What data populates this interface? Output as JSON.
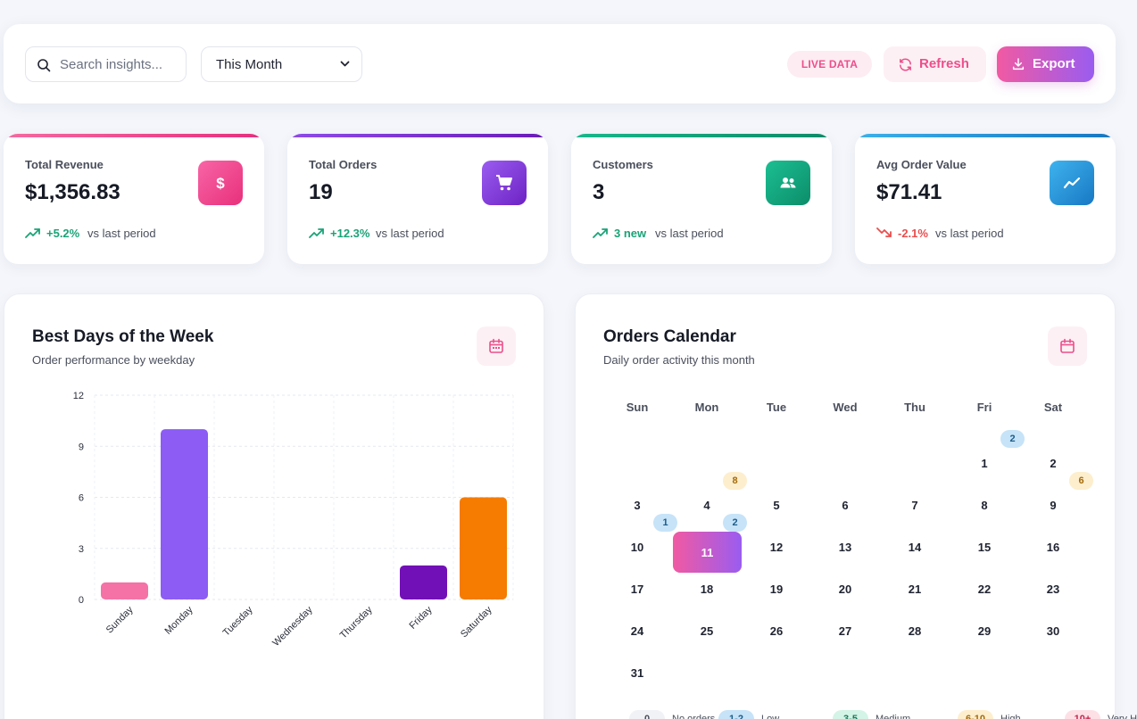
{
  "toolbar": {
    "search_placeholder": "Search insights...",
    "period": "This Month",
    "live_label": "LIVE DATA",
    "refresh_label": "Refresh",
    "export_label": "Export"
  },
  "stats": [
    {
      "label": "Total Revenue",
      "value": "$1,356.83",
      "change": "+5.2%",
      "vs": "vs last period",
      "trend": "up",
      "icon": "dollar-icon",
      "color": "#f0418c"
    },
    {
      "label": "Total Orders",
      "value": "19",
      "change": "+12.3%",
      "vs": "vs last period",
      "trend": "up",
      "icon": "shopping-cart-icon",
      "color": "#8b3fe0"
    },
    {
      "label": "Customers",
      "value": "3",
      "change": "3 new",
      "vs": "vs last period",
      "trend": "up",
      "icon": "users-icon",
      "color": "#13a883"
    },
    {
      "label": "Avg Order Value",
      "value": "$71.41",
      "change": "-2.1%",
      "vs": "vs last period",
      "trend": "down",
      "icon": "trend-line-icon",
      "color": "#2b9ee0"
    }
  ],
  "weekday_panel": {
    "title": "Best Days of the Week",
    "subtitle": "Order performance by weekday"
  },
  "chart_data": {
    "type": "bar",
    "categories": [
      "Sunday",
      "Monday",
      "Tuesday",
      "Wednesday",
      "Thursday",
      "Friday",
      "Saturday"
    ],
    "values": [
      1,
      10,
      0,
      0,
      0,
      2,
      6
    ],
    "colors": [
      "#f472a6",
      "#8c5cf5",
      "#8c5cf5",
      "#8c5cf5",
      "#8c5cf5",
      "#7210b8",
      "#f57c00"
    ],
    "title": "",
    "xlabel": "",
    "ylabel": "",
    "ylim": [
      0,
      12
    ],
    "yticks": [
      0,
      3,
      6,
      9,
      12
    ],
    "grid": true
  },
  "calendar": {
    "title": "Orders Calendar",
    "subtitle": "Daily order activity this month",
    "weekdays": [
      "Sun",
      "Mon",
      "Tue",
      "Wed",
      "Thu",
      "Fri",
      "Sat"
    ],
    "first_weekday_index": 5,
    "days_in_month": 31,
    "today": 11,
    "orders": {
      "1": 2,
      "4": 8,
      "9": 6,
      "10": 1,
      "11": 2
    },
    "legend": [
      {
        "swatch": "0",
        "label": "No orders"
      },
      {
        "swatch": "1-2",
        "label": "Low"
      },
      {
        "swatch": "3-5",
        "label": "Medium"
      },
      {
        "swatch": "6-10",
        "label": "High"
      },
      {
        "swatch": "10+",
        "label": "Very High"
      }
    ]
  }
}
